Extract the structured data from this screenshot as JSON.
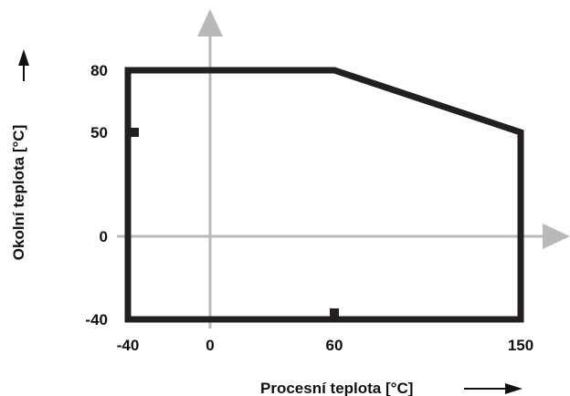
{
  "chart_data": {
    "type": "area",
    "xlabel": "Procesní teplota [°C]",
    "ylabel": "Okolní teplota [°C]",
    "x_ticks": [
      {
        "label": "-40",
        "value": -40
      },
      {
        "label": "0",
        "value": 0
      },
      {
        "label": "60",
        "value": 60
      },
      {
        "label": "150",
        "value": 150
      }
    ],
    "y_ticks": [
      {
        "label": "-40",
        "value": -40
      },
      {
        "label": "0",
        "value": 0
      },
      {
        "label": "50",
        "value": 50
      },
      {
        "label": "80",
        "value": 80
      }
    ],
    "x": [
      -40,
      -40,
      60,
      150,
      150
    ],
    "y": [
      -40,
      80,
      80,
      50,
      -40
    ],
    "xlim": [
      -40,
      150
    ],
    "ylim": [
      -40,
      80
    ],
    "grid": false,
    "colors": {
      "boundary": "#231f20",
      "axes": "#b9b9b9",
      "text": "#111111"
    }
  }
}
